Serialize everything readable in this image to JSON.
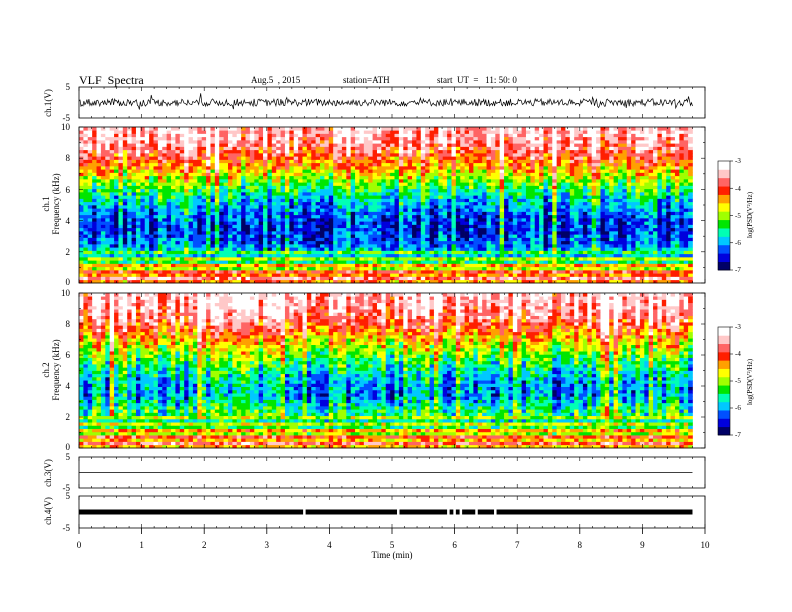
{
  "header": {
    "title": "VLF  Spectra",
    "date": "Aug.5  , 2015",
    "station": "station=ATH",
    "start": "start  UT  =   11: 50: 0"
  },
  "colors": {
    "colormap": [
      "#000066",
      "#0000dd",
      "#0050ff",
      "#00c8ff",
      "#00ffb4",
      "#00e600",
      "#a0ff00",
      "#ffff00",
      "#ffa000",
      "#ff1e00",
      "#ff6464",
      "#ffc8c8",
      "#ffffff"
    ],
    "trace": "#000000",
    "axis": "#000000"
  },
  "chart_data": [
    {
      "type": "line",
      "name": "ch1-waveform",
      "ylabel": "ch.1(V)",
      "ylim": [
        -5,
        5
      ],
      "yticks": [
        "5",
        "-5"
      ],
      "approx_level": 0,
      "approx_amplitude": 1.2
    },
    {
      "type": "heatmap",
      "name": "ch1-spectrogram",
      "ylabel_channel": "ch.1",
      "ylabel": "Frequency  (kHz)",
      "ylim": [
        0,
        10
      ],
      "yticks": [
        "0",
        "2",
        "4",
        "6",
        "8",
        "10"
      ],
      "colorbar": {
        "label": "log(PSD(V²/Hz)",
        "range": [
          -7,
          -3
        ],
        "ticks": [
          "-3",
          "-4",
          "-5",
          "-6",
          "-7"
        ]
      },
      "profile_khz_logpsd": [
        [
          0.5,
          -4.0
        ],
        [
          1.5,
          -5.4
        ],
        [
          2.5,
          -6.3
        ],
        [
          3.5,
          -6.6
        ],
        [
          4.5,
          -6.3
        ],
        [
          5.5,
          -5.8
        ],
        [
          6.5,
          -5.1
        ],
        [
          7.5,
          -4.3
        ],
        [
          8.5,
          -3.7
        ],
        [
          9.5,
          -3.3
        ]
      ]
    },
    {
      "type": "heatmap",
      "name": "ch2-spectrogram",
      "ylabel_channel": "ch.2",
      "ylabel": "Frequency  (kHz)",
      "ylim": [
        0,
        10
      ],
      "yticks": [
        "0",
        "2",
        "4",
        "6",
        "8",
        "10"
      ],
      "colorbar": {
        "label": "log(PSD(V²/Hz)",
        "range": [
          -7,
          -3
        ],
        "ticks": [
          "-3",
          "-4",
          "-5",
          "-6",
          "-7"
        ]
      },
      "profile_khz_logpsd": [
        [
          0.5,
          -4.2
        ],
        [
          1.5,
          -5.3
        ],
        [
          2.5,
          -5.6
        ],
        [
          3.5,
          -6.2
        ],
        [
          4.5,
          -6.0
        ],
        [
          5.5,
          -5.5
        ],
        [
          6.5,
          -4.9
        ],
        [
          7.5,
          -4.2
        ],
        [
          8.5,
          -3.6
        ],
        [
          9.5,
          -3.3
        ]
      ]
    },
    {
      "type": "line",
      "name": "ch3-waveform",
      "ylabel": "ch.3(V)",
      "ylim": [
        -5,
        5
      ],
      "yticks": [
        "5",
        "-5"
      ],
      "approx_level": 0
    },
    {
      "type": "line",
      "name": "ch4-waveform",
      "ylabel": "ch.4(V)",
      "ylim": [
        -5,
        5
      ],
      "yticks": [
        "5",
        "-5"
      ],
      "approx_level": 0,
      "gaps_min": [
        3.6,
        5.1,
        5.9,
        6.0,
        6.1,
        6.35,
        6.65
      ]
    }
  ],
  "xaxis": {
    "label": "Time  (min)",
    "range": [
      0,
      10
    ],
    "data_end": 9.8,
    "ticks": [
      "0",
      "1",
      "2",
      "3",
      "4",
      "5",
      "6",
      "7",
      "8",
      "9",
      "10"
    ]
  }
}
